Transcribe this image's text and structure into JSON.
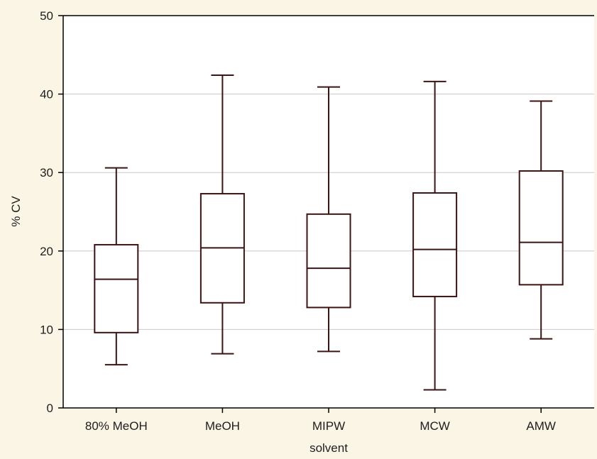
{
  "chart_data": {
    "type": "box",
    "xlabel": "solvent",
    "ylabel": "% CV",
    "ylim": [
      0,
      50
    ],
    "yticks": [
      0,
      10,
      20,
      30,
      40,
      50
    ],
    "grid": true,
    "categories": [
      "80% MeOH",
      "MeOH",
      "MIPW",
      "MCW",
      "AMW"
    ],
    "boxes": [
      {
        "category": "80% MeOH",
        "min": 5.5,
        "q1": 9.6,
        "median": 16.4,
        "q3": 20.8,
        "max": 30.6
      },
      {
        "category": "MeOH",
        "min": 6.9,
        "q1": 13.4,
        "median": 20.4,
        "q3": 27.3,
        "max": 42.4
      },
      {
        "category": "MIPW",
        "min": 7.2,
        "q1": 12.8,
        "median": 17.8,
        "q3": 24.7,
        "max": 40.9
      },
      {
        "category": "MCW",
        "min": 2.3,
        "q1": 14.2,
        "median": 20.2,
        "q3": 27.4,
        "max": 41.6
      },
      {
        "category": "AMW",
        "min": 8.8,
        "q1": 15.7,
        "median": 21.1,
        "q3": 30.2,
        "max": 39.1
      }
    ],
    "colors": {
      "background": "#fbf5e6",
      "plot_area": "#ffffff",
      "box_stroke": "#3c1414",
      "grid": "#c8c8c8",
      "axis": "#000000"
    }
  }
}
